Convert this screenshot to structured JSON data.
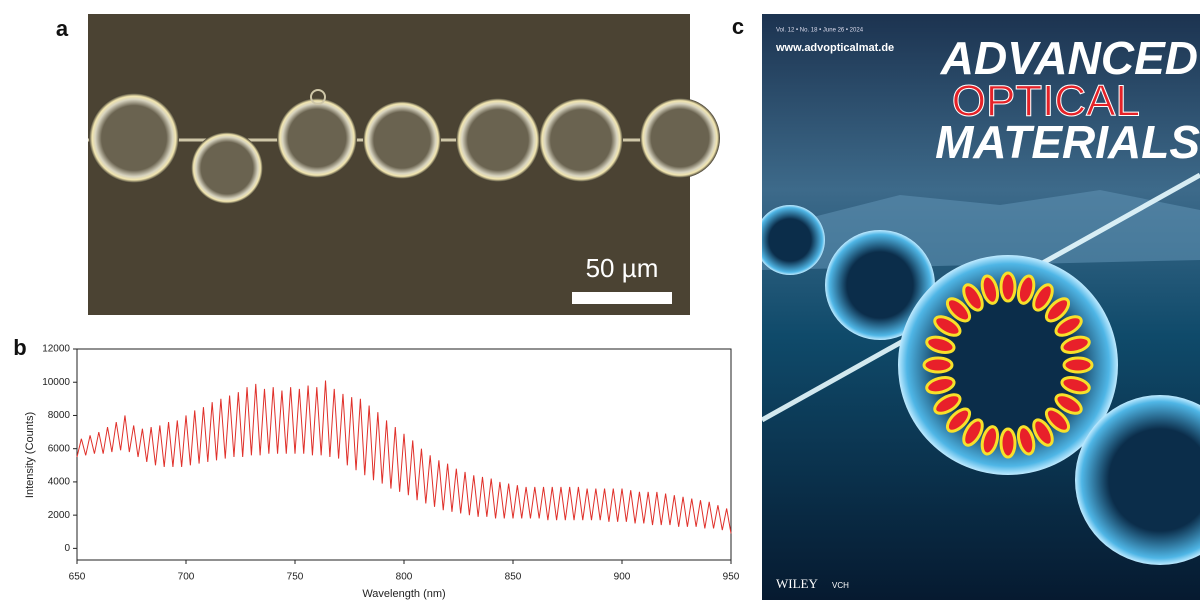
{
  "figure": {
    "panel_a": {
      "label": "a",
      "scale_bar": "50 µm"
    },
    "panel_c": {
      "label": "c",
      "volume_line": "Vol. 12 • No. 18 • June 26 • 2024",
      "url": "www.advopticalmat.de",
      "title_lines": [
        "ADVANCED",
        "OPTICAL",
        "MATERIALS"
      ],
      "publisher": "WILEY",
      "publisher_suffix": "VCH"
    }
  },
  "chart_data": {
    "type": "line",
    "panel_label": "b",
    "x_label": "Wavelength (nm)",
    "y_label": "Intensity (Counts)",
    "color": "#e0302a",
    "xlim": [
      650,
      950
    ],
    "xticks": [
      650,
      700,
      750,
      800,
      850,
      900,
      950
    ],
    "ylim": [
      -700,
      12000
    ],
    "yticks": [
      0,
      2000,
      4000,
      6000,
      8000,
      10000,
      12000
    ],
    "grid": false,
    "x": [
      650,
      652,
      654,
      656,
      658,
      660,
      662,
      664,
      666,
      668,
      670,
      672,
      674,
      676,
      678,
      680,
      682,
      684,
      686,
      688,
      690,
      692,
      694,
      696,
      698,
      700,
      702,
      704,
      706,
      708,
      710,
      712,
      714,
      716,
      718,
      720,
      722,
      724,
      726,
      728,
      730,
      732,
      734,
      736,
      738,
      740,
      742,
      744,
      746,
      748,
      750,
      752,
      754,
      756,
      758,
      760,
      762,
      764,
      766,
      768,
      770,
      772,
      774,
      776,
      778,
      780,
      782,
      784,
      786,
      788,
      790,
      792,
      794,
      796,
      798,
      800,
      802,
      804,
      806,
      808,
      810,
      812,
      814,
      816,
      818,
      820,
      822,
      824,
      826,
      828,
      830,
      832,
      834,
      836,
      838,
      840,
      842,
      844,
      846,
      848,
      850,
      852,
      854,
      856,
      858,
      860,
      862,
      864,
      866,
      868,
      870,
      872,
      874,
      876,
      878,
      880,
      882,
      884,
      886,
      888,
      890,
      892,
      894,
      896,
      898,
      900,
      902,
      904,
      906,
      908,
      910,
      912,
      914,
      916,
      918,
      920,
      922,
      924,
      926,
      928,
      930,
      932,
      934,
      936,
      938,
      940,
      942,
      944,
      946,
      948,
      950
    ],
    "values": [
      5500,
      6600,
      5600,
      6800,
      5700,
      7000,
      5700,
      7300,
      5800,
      7600,
      5900,
      8000,
      5800,
      7400,
      5500,
      7200,
      5200,
      7300,
      5000,
      7400,
      4900,
      7600,
      4900,
      7700,
      4900,
      8000,
      5000,
      8300,
      5100,
      8500,
      5200,
      8800,
      5300,
      9000,
      5400,
      9200,
      5500,
      9400,
      5500,
      9700,
      5600,
      9900,
      5600,
      9600,
      5700,
      9700,
      5700,
      9500,
      5700,
      9700,
      5700,
      9600,
      5700,
      9800,
      5600,
      9700,
      5600,
      10100,
      5500,
      9600,
      5400,
      9300,
      5000,
      9100,
      4700,
      9000,
      4400,
      8600,
      4100,
      8200,
      3900,
      7700,
      3600,
      7300,
      3400,
      6900,
      3200,
      6500,
      2900,
      6000,
      2700,
      5600,
      2500,
      5300,
      2300,
      5100,
      2200,
      4800,
      2100,
      4600,
      2000,
      4400,
      1900,
      4300,
      1900,
      4200,
      1800,
      4000,
      1800,
      3900,
      1800,
      3800,
      1800,
      3700,
      1800,
      3700,
      1800,
      3700,
      1700,
      3700,
      1700,
      3700,
      1700,
      3700,
      1700,
      3700,
      1700,
      3600,
      1700,
      3600,
      1700,
      3600,
      1600,
      3600,
      1600,
      3600,
      1600,
      3500,
      1500,
      3400,
      1500,
      3400,
      1400,
      3400,
      1400,
      3300,
      1400,
      3200,
      1300,
      3100,
      1300,
      3000,
      1300,
      2900,
      1200,
      2800,
      1200,
      2600,
      1100,
      2400,
      900
    ]
  }
}
